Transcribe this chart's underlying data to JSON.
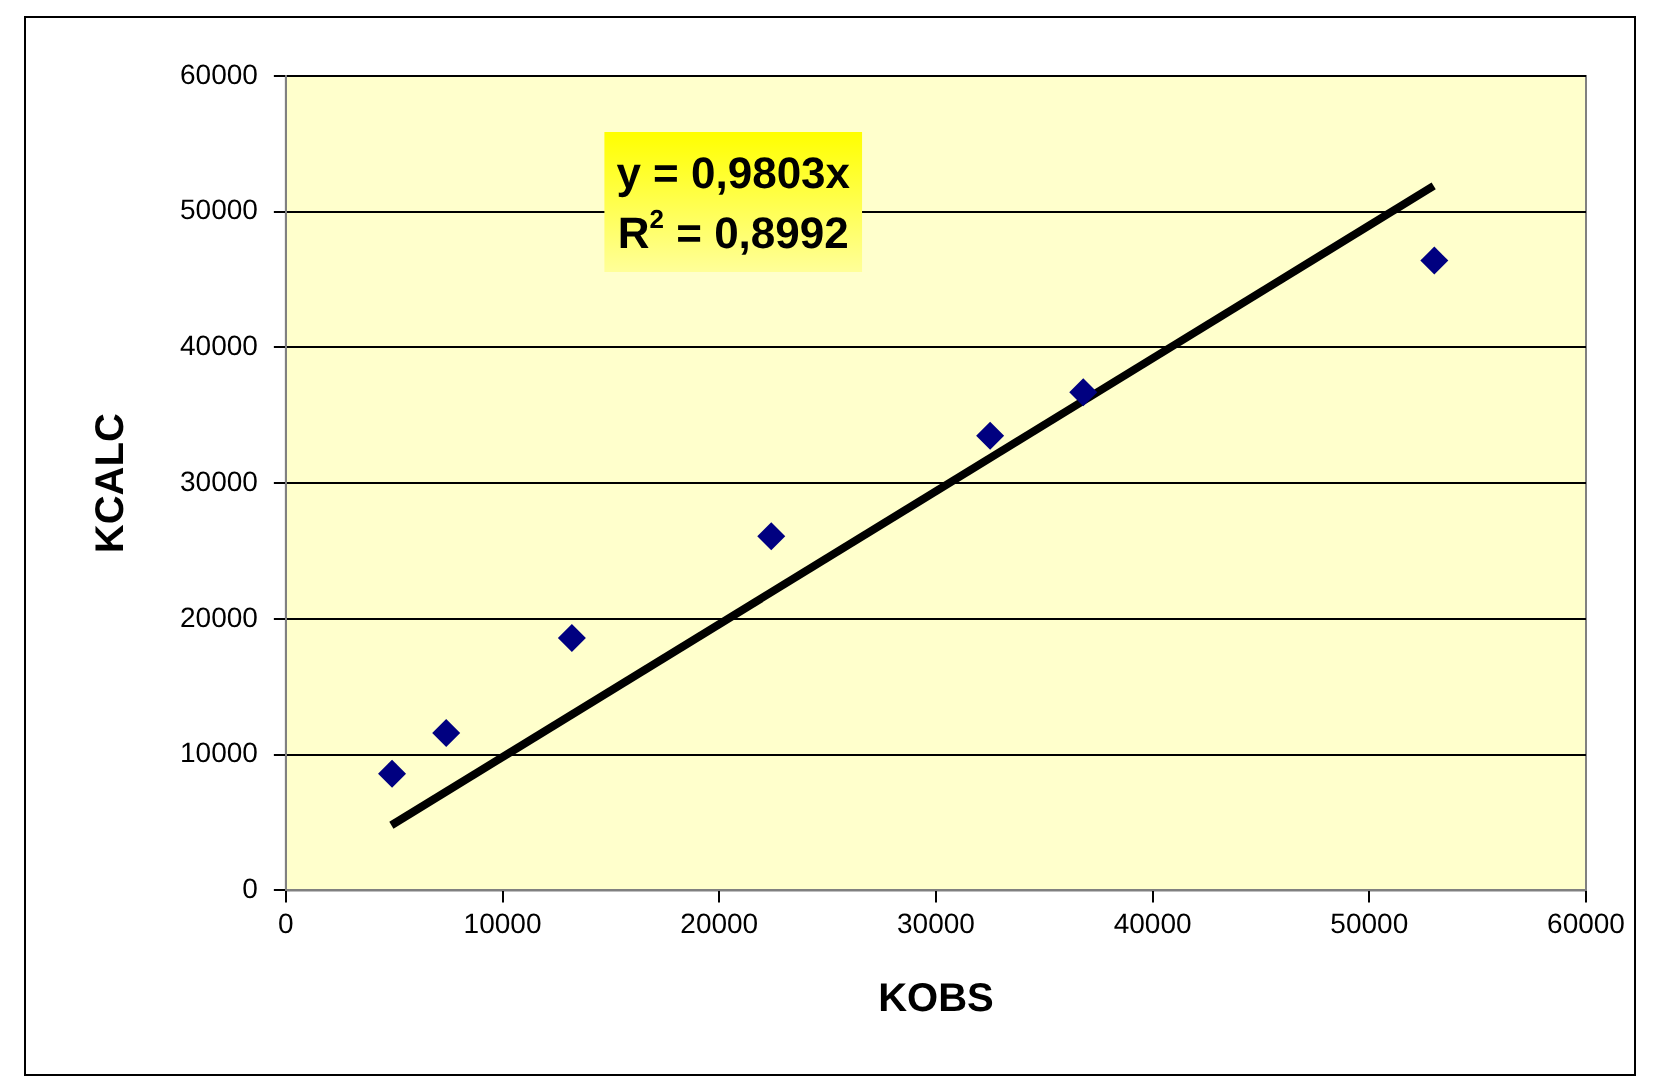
{
  "chart_data": {
    "type": "scatter",
    "xlabel": "KOBS",
    "ylabel": "KCALC",
    "annotations": [
      "y = 0,9803x",
      "R$^{2}$ = 0,8992"
    ],
    "xlim": [
      0,
      60000
    ],
    "xticks": [
      0,
      10000,
      20000,
      30000,
      40000,
      50000,
      60000
    ],
    "ylim": [
      0,
      60000
    ],
    "yticks": [
      0,
      10000,
      20000,
      30000,
      40000,
      50000,
      60000
    ],
    "grid": "y",
    "legend": false,
    "marker": "diamond",
    "series": [
      {
        "color": "#000080",
        "x": [
          4900,
          7400,
          13200,
          22400,
          32500,
          36800,
          53000
        ],
        "values": [
          8600,
          11600,
          18600,
          26100,
          33500,
          36700,
          46400
        ]
      },
      {
        "type": "line",
        "color": "#000000",
        "marker": "none",
        "line_style": "solid",
        "x": [
          4870,
          52970
        ],
        "values": [
          4800,
          51900
        ]
      }
    ]
  }
}
